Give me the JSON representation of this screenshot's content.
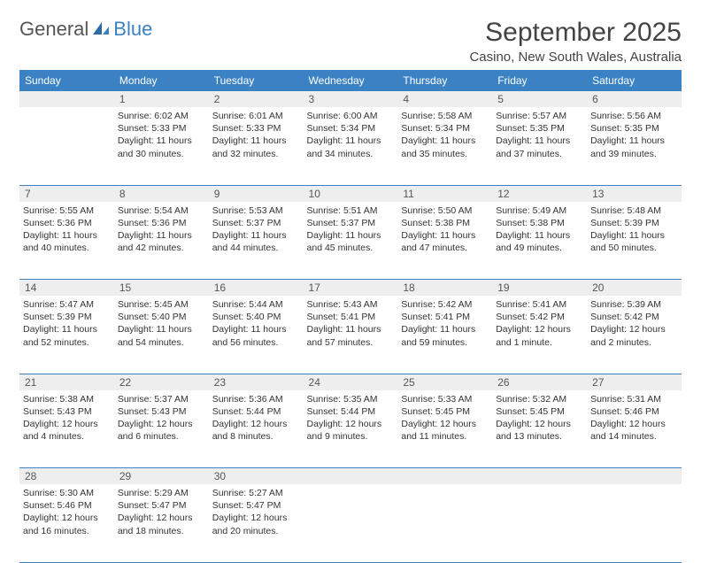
{
  "brand": {
    "part1": "General",
    "part2": "Blue"
  },
  "title": "September 2025",
  "location": "Casino, New South Wales, Australia",
  "colors": {
    "header_bg": "#3b82c4",
    "header_text": "#ffffff",
    "daynum_bg": "#eeeeee",
    "text": "#333333",
    "row_divider": "#3b82c4",
    "logo_gray": "#555555",
    "logo_blue": "#3b82c4"
  },
  "layout": {
    "columns": 7,
    "rows": 5,
    "cell_font_size_pt": 8,
    "header_font_size_pt": 9,
    "title_font_size_pt": 22
  },
  "weekdays": [
    "Sunday",
    "Monday",
    "Tuesday",
    "Wednesday",
    "Thursday",
    "Friday",
    "Saturday"
  ],
  "weeks": [
    {
      "nums": [
        "",
        "1",
        "2",
        "3",
        "4",
        "5",
        "6"
      ],
      "cells": [
        null,
        {
          "sunrise": "Sunrise: 6:02 AM",
          "sunset": "Sunset: 5:33 PM",
          "day1": "Daylight: 11 hours",
          "day2": "and 30 minutes."
        },
        {
          "sunrise": "Sunrise: 6:01 AM",
          "sunset": "Sunset: 5:33 PM",
          "day1": "Daylight: 11 hours",
          "day2": "and 32 minutes."
        },
        {
          "sunrise": "Sunrise: 6:00 AM",
          "sunset": "Sunset: 5:34 PM",
          "day1": "Daylight: 11 hours",
          "day2": "and 34 minutes."
        },
        {
          "sunrise": "Sunrise: 5:58 AM",
          "sunset": "Sunset: 5:34 PM",
          "day1": "Daylight: 11 hours",
          "day2": "and 35 minutes."
        },
        {
          "sunrise": "Sunrise: 5:57 AM",
          "sunset": "Sunset: 5:35 PM",
          "day1": "Daylight: 11 hours",
          "day2": "and 37 minutes."
        },
        {
          "sunrise": "Sunrise: 5:56 AM",
          "sunset": "Sunset: 5:35 PM",
          "day1": "Daylight: 11 hours",
          "day2": "and 39 minutes."
        }
      ]
    },
    {
      "nums": [
        "7",
        "8",
        "9",
        "10",
        "11",
        "12",
        "13"
      ],
      "cells": [
        {
          "sunrise": "Sunrise: 5:55 AM",
          "sunset": "Sunset: 5:36 PM",
          "day1": "Daylight: 11 hours",
          "day2": "and 40 minutes."
        },
        {
          "sunrise": "Sunrise: 5:54 AM",
          "sunset": "Sunset: 5:36 PM",
          "day1": "Daylight: 11 hours",
          "day2": "and 42 minutes."
        },
        {
          "sunrise": "Sunrise: 5:53 AM",
          "sunset": "Sunset: 5:37 PM",
          "day1": "Daylight: 11 hours",
          "day2": "and 44 minutes."
        },
        {
          "sunrise": "Sunrise: 5:51 AM",
          "sunset": "Sunset: 5:37 PM",
          "day1": "Daylight: 11 hours",
          "day2": "and 45 minutes."
        },
        {
          "sunrise": "Sunrise: 5:50 AM",
          "sunset": "Sunset: 5:38 PM",
          "day1": "Daylight: 11 hours",
          "day2": "and 47 minutes."
        },
        {
          "sunrise": "Sunrise: 5:49 AM",
          "sunset": "Sunset: 5:38 PM",
          "day1": "Daylight: 11 hours",
          "day2": "and 49 minutes."
        },
        {
          "sunrise": "Sunrise: 5:48 AM",
          "sunset": "Sunset: 5:39 PM",
          "day1": "Daylight: 11 hours",
          "day2": "and 50 minutes."
        }
      ]
    },
    {
      "nums": [
        "14",
        "15",
        "16",
        "17",
        "18",
        "19",
        "20"
      ],
      "cells": [
        {
          "sunrise": "Sunrise: 5:47 AM",
          "sunset": "Sunset: 5:39 PM",
          "day1": "Daylight: 11 hours",
          "day2": "and 52 minutes."
        },
        {
          "sunrise": "Sunrise: 5:45 AM",
          "sunset": "Sunset: 5:40 PM",
          "day1": "Daylight: 11 hours",
          "day2": "and 54 minutes."
        },
        {
          "sunrise": "Sunrise: 5:44 AM",
          "sunset": "Sunset: 5:40 PM",
          "day1": "Daylight: 11 hours",
          "day2": "and 56 minutes."
        },
        {
          "sunrise": "Sunrise: 5:43 AM",
          "sunset": "Sunset: 5:41 PM",
          "day1": "Daylight: 11 hours",
          "day2": "and 57 minutes."
        },
        {
          "sunrise": "Sunrise: 5:42 AM",
          "sunset": "Sunset: 5:41 PM",
          "day1": "Daylight: 11 hours",
          "day2": "and 59 minutes."
        },
        {
          "sunrise": "Sunrise: 5:41 AM",
          "sunset": "Sunset: 5:42 PM",
          "day1": "Daylight: 12 hours",
          "day2": "and 1 minute."
        },
        {
          "sunrise": "Sunrise: 5:39 AM",
          "sunset": "Sunset: 5:42 PM",
          "day1": "Daylight: 12 hours",
          "day2": "and 2 minutes."
        }
      ]
    },
    {
      "nums": [
        "21",
        "22",
        "23",
        "24",
        "25",
        "26",
        "27"
      ],
      "cells": [
        {
          "sunrise": "Sunrise: 5:38 AM",
          "sunset": "Sunset: 5:43 PM",
          "day1": "Daylight: 12 hours",
          "day2": "and 4 minutes."
        },
        {
          "sunrise": "Sunrise: 5:37 AM",
          "sunset": "Sunset: 5:43 PM",
          "day1": "Daylight: 12 hours",
          "day2": "and 6 minutes."
        },
        {
          "sunrise": "Sunrise: 5:36 AM",
          "sunset": "Sunset: 5:44 PM",
          "day1": "Daylight: 12 hours",
          "day2": "and 8 minutes."
        },
        {
          "sunrise": "Sunrise: 5:35 AM",
          "sunset": "Sunset: 5:44 PM",
          "day1": "Daylight: 12 hours",
          "day2": "and 9 minutes."
        },
        {
          "sunrise": "Sunrise: 5:33 AM",
          "sunset": "Sunset: 5:45 PM",
          "day1": "Daylight: 12 hours",
          "day2": "and 11 minutes."
        },
        {
          "sunrise": "Sunrise: 5:32 AM",
          "sunset": "Sunset: 5:45 PM",
          "day1": "Daylight: 12 hours",
          "day2": "and 13 minutes."
        },
        {
          "sunrise": "Sunrise: 5:31 AM",
          "sunset": "Sunset: 5:46 PM",
          "day1": "Daylight: 12 hours",
          "day2": "and 14 minutes."
        }
      ]
    },
    {
      "nums": [
        "28",
        "29",
        "30",
        "",
        "",
        "",
        ""
      ],
      "cells": [
        {
          "sunrise": "Sunrise: 5:30 AM",
          "sunset": "Sunset: 5:46 PM",
          "day1": "Daylight: 12 hours",
          "day2": "and 16 minutes."
        },
        {
          "sunrise": "Sunrise: 5:29 AM",
          "sunset": "Sunset: 5:47 PM",
          "day1": "Daylight: 12 hours",
          "day2": "and 18 minutes."
        },
        {
          "sunrise": "Sunrise: 5:27 AM",
          "sunset": "Sunset: 5:47 PM",
          "day1": "Daylight: 12 hours",
          "day2": "and 20 minutes."
        },
        null,
        null,
        null,
        null
      ]
    }
  ]
}
